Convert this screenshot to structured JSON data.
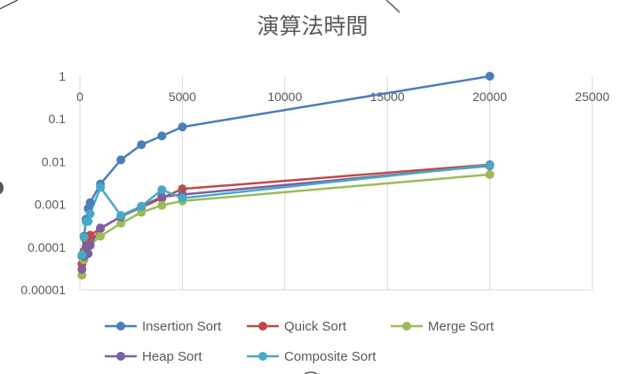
{
  "chart_data": {
    "type": "line",
    "title": "演算法時間",
    "xlabel": "",
    "ylabel": "",
    "xlim": [
      0,
      25000
    ],
    "ylim": [
      1e-05,
      1
    ],
    "yscale": "log",
    "grid": "vertical",
    "legend_position": "bottom",
    "x_ticks": [
      "0",
      "5000",
      "10000",
      "15000",
      "20000",
      "25000"
    ],
    "y_ticks": [
      "1",
      "0.1",
      "0.01",
      "0.001",
      "0.0001",
      "0.00001"
    ],
    "series": [
      {
        "name": "Insertion Sort",
        "color": "#4a7ebb",
        "points": [
          [
            100,
            6e-05
          ],
          [
            200,
            0.00018
          ],
          [
            300,
            0.00045
          ],
          [
            400,
            0.0008
          ],
          [
            500,
            0.0011
          ],
          [
            1000,
            0.003
          ],
          [
            2000,
            0.011
          ],
          [
            3000,
            0.025
          ],
          [
            4000,
            0.04
          ],
          [
            5000,
            0.065
          ],
          [
            20000,
            1.0
          ]
        ]
      },
      {
        "name": "Quick Sort",
        "color": "#be4b48",
        "points": [
          [
            100,
            4e-05
          ],
          [
            200,
            8e-05
          ],
          [
            300,
            0.00014
          ],
          [
            400,
            0.00016
          ],
          [
            500,
            0.00019
          ],
          [
            1000,
            0.00027
          ],
          [
            2000,
            0.00052
          ],
          [
            3000,
            0.00085
          ],
          [
            4000,
            0.0014
          ],
          [
            5000,
            0.0023
          ],
          [
            20000,
            0.0085
          ]
        ]
      },
      {
        "name": "Merge Sort",
        "color": "#9bbb59",
        "points": [
          [
            100,
            2.2e-05
          ],
          [
            200,
            5e-05
          ],
          [
            300,
            8e-05
          ],
          [
            400,
            0.0001
          ],
          [
            500,
            0.00011
          ],
          [
            1000,
            0.00018
          ],
          [
            2000,
            0.00036
          ],
          [
            3000,
            0.00065
          ],
          [
            4000,
            0.00095
          ],
          [
            5000,
            0.0012
          ],
          [
            20000,
            0.005
          ]
        ]
      },
      {
        "name": "Heap Sort",
        "color": "#7d60a0",
        "points": [
          [
            100,
            3e-05
          ],
          [
            200,
            6e-05
          ],
          [
            300,
            0.0001
          ],
          [
            400,
            7e-05
          ],
          [
            500,
            0.00011
          ],
          [
            1000,
            0.00028
          ],
          [
            2000,
            0.00051
          ],
          [
            3000,
            0.0009
          ],
          [
            4000,
            0.0015
          ],
          [
            5000,
            0.0017
          ],
          [
            20000,
            0.008
          ]
        ]
      },
      {
        "name": "Composite Sort",
        "color": "#46aac5",
        "points": [
          [
            100,
            6.5e-05
          ],
          [
            200,
            0.00017
          ],
          [
            300,
            0.0004
          ],
          [
            400,
            0.0004
          ],
          [
            500,
            0.0006
          ],
          [
            1000,
            0.0025
          ],
          [
            2000,
            0.00055
          ],
          [
            3000,
            0.0009
          ],
          [
            4000,
            0.0022
          ],
          [
            5000,
            0.0014
          ],
          [
            20000,
            0.0083
          ]
        ]
      }
    ]
  }
}
